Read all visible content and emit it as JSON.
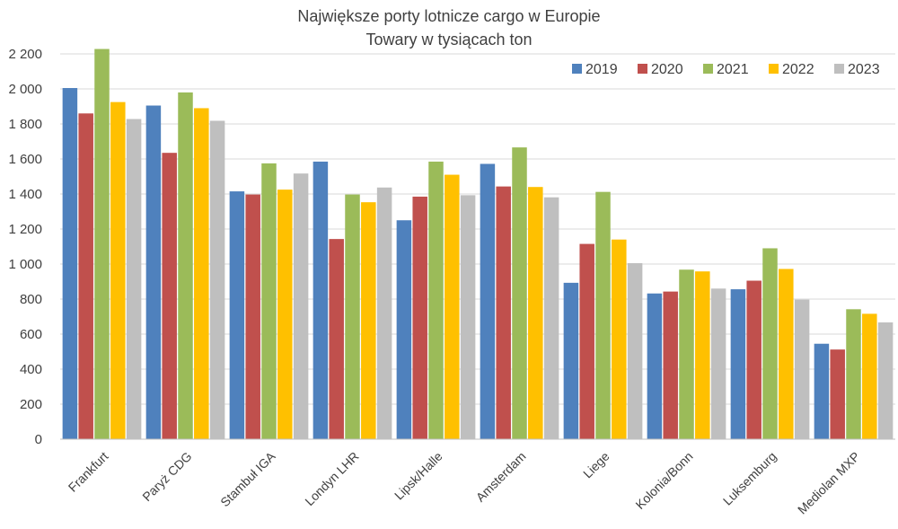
{
  "chart_data": {
    "type": "bar",
    "title": "Największe porty lotnicze cargo w Europie",
    "subtitle": "Towary w tysiącach ton",
    "xlabel": "",
    "ylabel": "",
    "ylim": [
      0,
      2200
    ],
    "yticks": [
      0,
      200,
      400,
      600,
      800,
      1000,
      1200,
      1400,
      1600,
      1800,
      2000,
      2200
    ],
    "ytick_labels": [
      "0",
      "200",
      "400",
      "600",
      "800",
      "1 000",
      "1 200",
      "1 400",
      "1 600",
      "1 800",
      "2 000",
      "2 200"
    ],
    "grid": true,
    "legend_position": "top-right",
    "categories": [
      "Frankfurt",
      "Paryż CDG",
      "Stambuł IGA",
      "Londyn LHR",
      "Lipsk/Halle",
      "Amsterdam",
      "Liege",
      "Kolonia/Bonn",
      "Luksemburg",
      "Mediolan MXP"
    ],
    "series": [
      {
        "name": "2019",
        "color": "#4F81BD",
        "values": [
          2005,
          1905,
          1415,
          1585,
          1250,
          1572,
          893,
          832,
          856,
          545
        ]
      },
      {
        "name": "2020",
        "color": "#C0504D",
        "values": [
          1860,
          1635,
          1397,
          1143,
          1385,
          1443,
          1115,
          843,
          905,
          512
        ]
      },
      {
        "name": "2021",
        "color": "#9BBB59",
        "values": [
          2228,
          1980,
          1575,
          1397,
          1585,
          1666,
          1412,
          968,
          1090,
          742
        ]
      },
      {
        "name": "2022",
        "color": "#FFC000",
        "values": [
          1925,
          1890,
          1425,
          1353,
          1510,
          1440,
          1140,
          958,
          972,
          716
        ]
      },
      {
        "name": "2023",
        "color": "#BFBFBF",
        "values": [
          1828,
          1818,
          1517,
          1437,
          1393,
          1381,
          1005,
          860,
          797,
          667
        ]
      }
    ]
  }
}
